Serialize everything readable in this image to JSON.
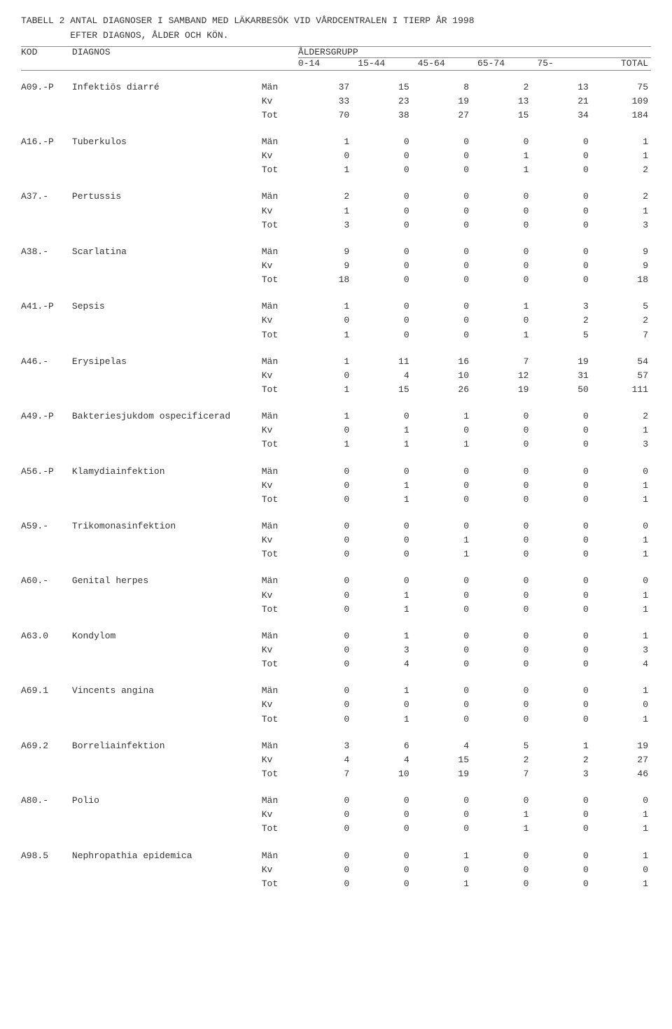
{
  "title_line1": "TABELL 2 ANTAL DIAGNOSER I SAMBAND MED LÄKARBESÖK VID VÅRDCENTRALEN I TIERP ÅR 1998",
  "title_line2": "         EFTER DIAGNOS, ÅLDER OCH KÖN.",
  "header": {
    "kod": "KOD",
    "diagnos": "DIAGNOS",
    "aldersgrupp": "ÅLDERSGRUPP",
    "cols": [
      "0-14",
      "15-44",
      "45-64",
      "65-74",
      "75-",
      "TOTAL"
    ]
  },
  "sex_labels": [
    "Män",
    "Kv",
    "Tot"
  ],
  "rows": [
    {
      "kod": "A09.-P",
      "diag": "Infektiös diarré",
      "m": [
        37,
        15,
        8,
        2,
        13,
        75
      ],
      "k": [
        33,
        23,
        19,
        13,
        21,
        109
      ],
      "t": [
        70,
        38,
        27,
        15,
        34,
        184
      ]
    },
    {
      "kod": "A16.-P",
      "diag": "Tuberkulos",
      "m": [
        1,
        0,
        0,
        0,
        0,
        1
      ],
      "k": [
        0,
        0,
        0,
        1,
        0,
        1
      ],
      "t": [
        1,
        0,
        0,
        1,
        0,
        2
      ]
    },
    {
      "kod": "A37.-",
      "diag": "Pertussis",
      "m": [
        2,
        0,
        0,
        0,
        0,
        2
      ],
      "k": [
        1,
        0,
        0,
        0,
        0,
        1
      ],
      "t": [
        3,
        0,
        0,
        0,
        0,
        3
      ]
    },
    {
      "kod": "A38.-",
      "diag": "Scarlatina",
      "m": [
        9,
        0,
        0,
        0,
        0,
        9
      ],
      "k": [
        9,
        0,
        0,
        0,
        0,
        9
      ],
      "t": [
        18,
        0,
        0,
        0,
        0,
        18
      ]
    },
    {
      "kod": "A41.-P",
      "diag": "Sepsis",
      "m": [
        1,
        0,
        0,
        1,
        3,
        5
      ],
      "k": [
        0,
        0,
        0,
        0,
        2,
        2
      ],
      "t": [
        1,
        0,
        0,
        1,
        5,
        7
      ]
    },
    {
      "kod": "A46.-",
      "diag": "Erysipelas",
      "m": [
        1,
        11,
        16,
        7,
        19,
        54
      ],
      "k": [
        0,
        4,
        10,
        12,
        31,
        57
      ],
      "t": [
        1,
        15,
        26,
        19,
        50,
        111
      ]
    },
    {
      "kod": "A49.-P",
      "diag": "Bakteriesjukdom ospecificerad",
      "m": [
        1,
        0,
        1,
        0,
        0,
        2
      ],
      "k": [
        0,
        1,
        0,
        0,
        0,
        1
      ],
      "t": [
        1,
        1,
        1,
        0,
        0,
        3
      ]
    },
    {
      "kod": "A56.-P",
      "diag": "Klamydiainfektion",
      "m": [
        0,
        0,
        0,
        0,
        0,
        0
      ],
      "k": [
        0,
        1,
        0,
        0,
        0,
        1
      ],
      "t": [
        0,
        1,
        0,
        0,
        0,
        1
      ]
    },
    {
      "kod": "A59.-",
      "diag": "Trikomonasinfektion",
      "m": [
        0,
        0,
        0,
        0,
        0,
        0
      ],
      "k": [
        0,
        0,
        1,
        0,
        0,
        1
      ],
      "t": [
        0,
        0,
        1,
        0,
        0,
        1
      ]
    },
    {
      "kod": "A60.-",
      "diag": "Genital herpes",
      "m": [
        0,
        0,
        0,
        0,
        0,
        0
      ],
      "k": [
        0,
        1,
        0,
        0,
        0,
        1
      ],
      "t": [
        0,
        1,
        0,
        0,
        0,
        1
      ]
    },
    {
      "kod": "A63.0",
      "diag": "Kondylom",
      "m": [
        0,
        1,
        0,
        0,
        0,
        1
      ],
      "k": [
        0,
        3,
        0,
        0,
        0,
        3
      ],
      "t": [
        0,
        4,
        0,
        0,
        0,
        4
      ]
    },
    {
      "kod": "A69.1",
      "diag": "Vincents angina",
      "m": [
        0,
        1,
        0,
        0,
        0,
        1
      ],
      "k": [
        0,
        0,
        0,
        0,
        0,
        0
      ],
      "t": [
        0,
        1,
        0,
        0,
        0,
        1
      ]
    },
    {
      "kod": "A69.2",
      "diag": "Borreliainfektion",
      "m": [
        3,
        6,
        4,
        5,
        1,
        19
      ],
      "k": [
        4,
        4,
        15,
        2,
        2,
        27
      ],
      "t": [
        7,
        10,
        19,
        7,
        3,
        46
      ]
    },
    {
      "kod": "A80.-",
      "diag": "Polio",
      "m": [
        0,
        0,
        0,
        0,
        0,
        0
      ],
      "k": [
        0,
        0,
        0,
        1,
        0,
        1
      ],
      "t": [
        0,
        0,
        0,
        1,
        0,
        1
      ]
    },
    {
      "kod": "A98.5",
      "diag": "Nephropathia epidemica",
      "m": [
        0,
        0,
        1,
        0,
        0,
        1
      ],
      "k": [
        0,
        0,
        0,
        0,
        0,
        0
      ],
      "t": [
        0,
        0,
        1,
        0,
        0,
        1
      ]
    }
  ]
}
